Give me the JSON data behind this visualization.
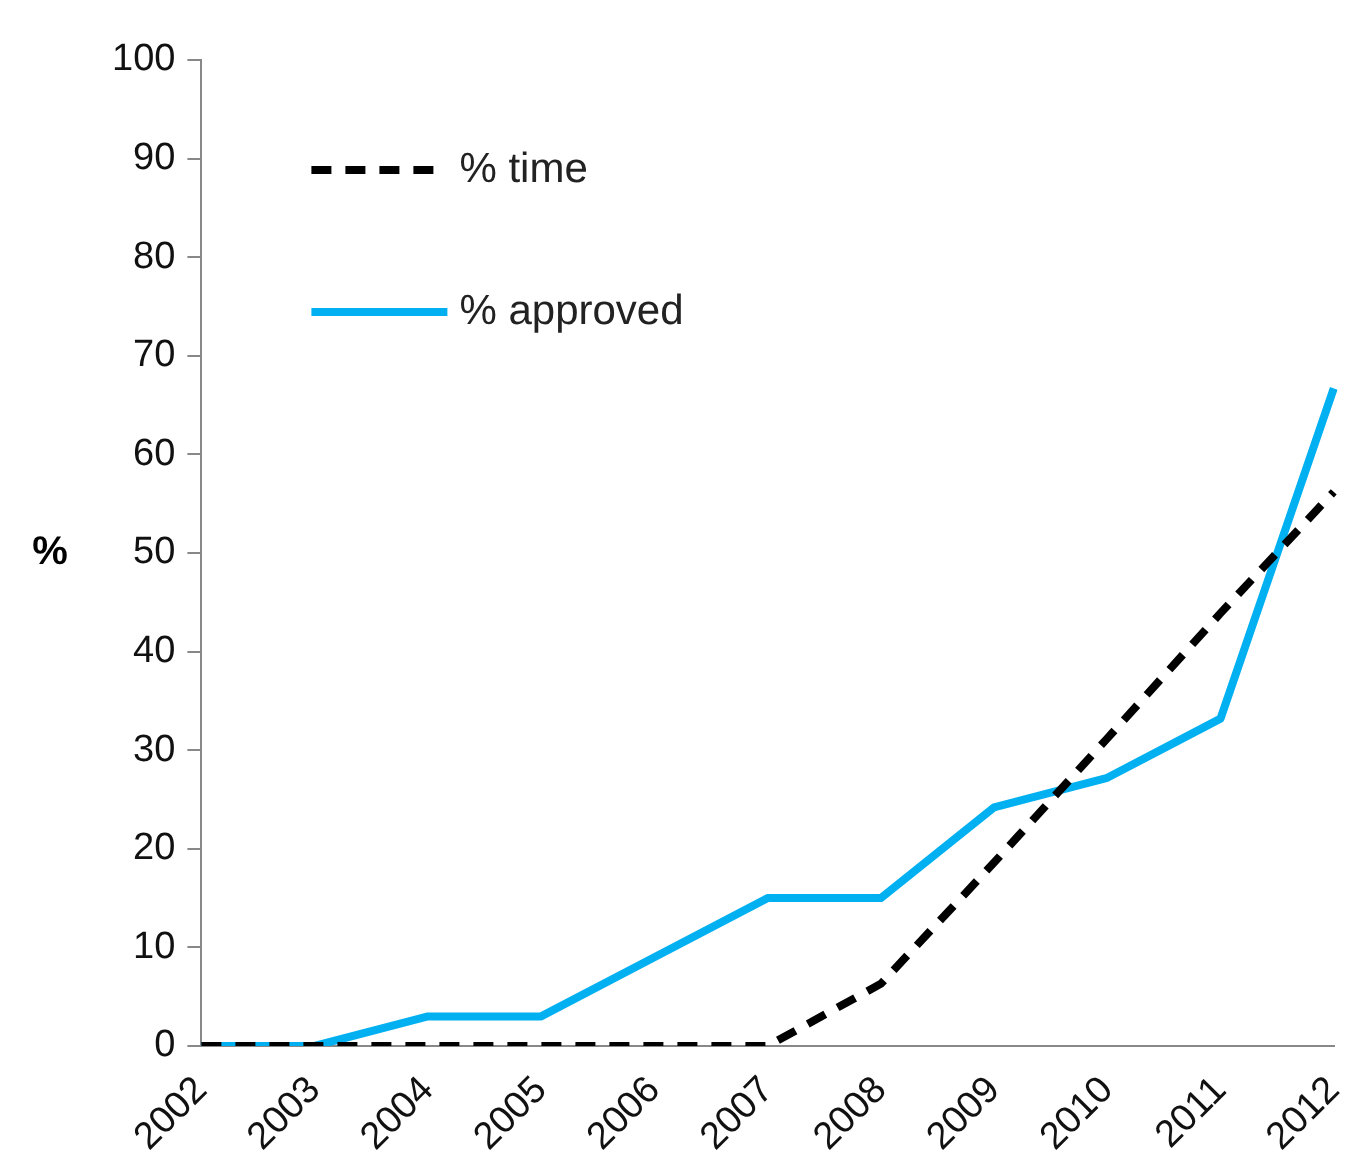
{
  "chart_data": {
    "type": "line",
    "ylabel": "%",
    "categories": [
      "2002",
      "2003",
      "2004",
      "2005",
      "2006",
      "2007",
      "2008",
      "2009",
      "2010",
      "2011",
      "2012"
    ],
    "series": [
      {
        "name": "% time",
        "color": "#000000",
        "line_style": "dashed",
        "values": [
          0,
          0,
          0,
          0,
          0,
          0,
          6.3,
          18.6,
          31.2,
          43.9,
          56.2
        ]
      },
      {
        "name": "% approved",
        "color": "#00b0f0",
        "line_style": "solid",
        "values": [
          0,
          0,
          3,
          3,
          9,
          15,
          15,
          24.2,
          27.2,
          33.2,
          66.7
        ]
      }
    ],
    "ylim": [
      0,
      100
    ],
    "yticks": [
      0,
      10,
      20,
      30,
      40,
      50,
      60,
      70,
      80,
      90,
      100
    ],
    "grid": false,
    "legend": "top left",
    "marker": "none"
  }
}
